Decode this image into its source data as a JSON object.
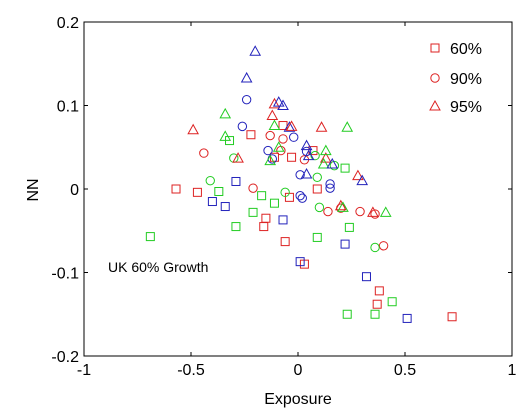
{
  "chart_data": {
    "type": "scatter",
    "title": "",
    "xlabel": "Exposure",
    "ylabel": "NN",
    "xlim": [
      -1,
      1
    ],
    "ylim": [
      -0.2,
      0.2
    ],
    "x_ticks": [
      "-1",
      "-0.5",
      "0",
      "0.5",
      "1"
    ],
    "y_ticks": [
      "-0.2",
      "-0.1",
      "0",
      "0.1",
      "0.2"
    ],
    "x_tick_values": [
      -1,
      -0.5,
      0,
      0.5,
      1
    ],
    "y_tick_values": [
      -0.2,
      -0.1,
      0,
      0.1,
      0.2
    ],
    "grid": false,
    "legend_position": "top-right",
    "legend": [
      {
        "label": "60%",
        "marker": "square"
      },
      {
        "label": "90%",
        "marker": "circle"
      },
      {
        "label": "95%",
        "marker": "triangle"
      }
    ],
    "annotations": [
      {
        "text": "UK 60% Growth",
        "x": -0.72,
        "y": -0.088
      }
    ],
    "colors": {
      "red": "#dd2222",
      "green": "#22cc22",
      "blue": "#2222bb"
    },
    "series": [
      {
        "marker": "square",
        "points": [
          {
            "x": -0.22,
            "y": 0.065,
            "c": "red"
          },
          {
            "x": -0.07,
            "y": 0.076,
            "c": "red"
          },
          {
            "x": -0.11,
            "y": 0.038,
            "c": "red"
          },
          {
            "x": -0.03,
            "y": 0.038,
            "c": "red"
          },
          {
            "x": 0.07,
            "y": 0.046,
            "c": "red"
          },
          {
            "x": 0.09,
            "y": 0.0,
            "c": "red"
          },
          {
            "x": -0.57,
            "y": 0.0,
            "c": "red"
          },
          {
            "x": -0.47,
            "y": -0.004,
            "c": "red"
          },
          {
            "x": -0.04,
            "y": -0.01,
            "c": "red"
          },
          {
            "x": -0.15,
            "y": -0.035,
            "c": "red"
          },
          {
            "x": -0.16,
            "y": -0.045,
            "c": "red"
          },
          {
            "x": -0.06,
            "y": -0.063,
            "c": "red"
          },
          {
            "x": 0.03,
            "y": -0.09,
            "c": "red"
          },
          {
            "x": 0.38,
            "y": -0.122,
            "c": "red"
          },
          {
            "x": 0.37,
            "y": -0.138,
            "c": "red"
          },
          {
            "x": 0.72,
            "y": -0.153,
            "c": "red"
          },
          {
            "x": -0.32,
            "y": 0.058,
            "c": "green"
          },
          {
            "x": 0.22,
            "y": 0.025,
            "c": "green"
          },
          {
            "x": -0.37,
            "y": -0.003,
            "c": "green"
          },
          {
            "x": -0.17,
            "y": -0.008,
            "c": "green"
          },
          {
            "x": -0.11,
            "y": -0.017,
            "c": "green"
          },
          {
            "x": -0.21,
            "y": -0.028,
            "c": "green"
          },
          {
            "x": -0.29,
            "y": -0.045,
            "c": "green"
          },
          {
            "x": 0.09,
            "y": -0.058,
            "c": "green"
          },
          {
            "x": -0.69,
            "y": -0.057,
            "c": "green"
          },
          {
            "x": 0.24,
            "y": -0.046,
            "c": "green"
          },
          {
            "x": 0.23,
            "y": -0.15,
            "c": "green"
          },
          {
            "x": 0.36,
            "y": -0.15,
            "c": "green"
          },
          {
            "x": 0.44,
            "y": -0.135,
            "c": "green"
          },
          {
            "x": -0.29,
            "y": 0.009,
            "c": "blue"
          },
          {
            "x": -0.4,
            "y": -0.015,
            "c": "blue"
          },
          {
            "x": -0.34,
            "y": -0.021,
            "c": "blue"
          },
          {
            "x": -0.07,
            "y": -0.037,
            "c": "blue"
          },
          {
            "x": 0.01,
            "y": -0.087,
            "c": "blue"
          },
          {
            "x": 0.22,
            "y": -0.066,
            "c": "blue"
          },
          {
            "x": 0.32,
            "y": -0.105,
            "c": "blue"
          },
          {
            "x": 0.51,
            "y": -0.155,
            "c": "blue"
          }
        ]
      },
      {
        "marker": "circle",
        "points": [
          {
            "x": -0.24,
            "y": 0.107,
            "c": "blue"
          },
          {
            "x": -0.26,
            "y": 0.075,
            "c": "blue"
          },
          {
            "x": -0.02,
            "y": 0.062,
            "c": "blue"
          },
          {
            "x": -0.14,
            "y": 0.046,
            "c": "blue"
          },
          {
            "x": 0.04,
            "y": 0.045,
            "c": "blue"
          },
          {
            "x": -0.07,
            "y": 0.06,
            "c": "red"
          },
          {
            "x": -0.13,
            "y": 0.064,
            "c": "red"
          },
          {
            "x": -0.08,
            "y": 0.046,
            "c": "red"
          },
          {
            "x": -0.44,
            "y": 0.043,
            "c": "red"
          },
          {
            "x": 0.03,
            "y": 0.035,
            "c": "red"
          },
          {
            "x": -0.3,
            "y": 0.037,
            "c": "green"
          },
          {
            "x": 0.08,
            "y": 0.04,
            "c": "green"
          },
          {
            "x": -0.12,
            "y": 0.036,
            "c": "blue"
          },
          {
            "x": 0.01,
            "y": 0.017,
            "c": "blue"
          },
          {
            "x": 0.17,
            "y": 0.028,
            "c": "green"
          },
          {
            "x": -0.41,
            "y": 0.01,
            "c": "green"
          },
          {
            "x": 0.09,
            "y": 0.014,
            "c": "green"
          },
          {
            "x": 0.15,
            "y": 0.006,
            "c": "blue"
          },
          {
            "x": 0.15,
            "y": 0.001,
            "c": "blue"
          },
          {
            "x": -0.21,
            "y": 0.001,
            "c": "red"
          },
          {
            "x": -0.06,
            "y": -0.004,
            "c": "green"
          },
          {
            "x": 0.01,
            "y": -0.008,
            "c": "blue"
          },
          {
            "x": 0.02,
            "y": -0.011,
            "c": "blue"
          },
          {
            "x": 0.1,
            "y": -0.022,
            "c": "green"
          },
          {
            "x": 0.14,
            "y": -0.027,
            "c": "red"
          },
          {
            "x": 0.2,
            "y": -0.023,
            "c": "red"
          },
          {
            "x": 0.29,
            "y": -0.027,
            "c": "red"
          },
          {
            "x": 0.36,
            "y": -0.03,
            "c": "red"
          },
          {
            "x": 0.4,
            "y": -0.068,
            "c": "red"
          },
          {
            "x": 0.36,
            "y": -0.07,
            "c": "green"
          }
        ]
      },
      {
        "marker": "triangle",
        "points": [
          {
            "x": -0.2,
            "y": 0.165,
            "c": "blue"
          },
          {
            "x": -0.24,
            "y": 0.133,
            "c": "blue"
          },
          {
            "x": -0.11,
            "y": 0.102,
            "c": "red"
          },
          {
            "x": -0.09,
            "y": 0.104,
            "c": "blue"
          },
          {
            "x": -0.07,
            "y": 0.1,
            "c": "blue"
          },
          {
            "x": -0.49,
            "y": 0.071,
            "c": "red"
          },
          {
            "x": -0.34,
            "y": 0.09,
            "c": "green"
          },
          {
            "x": -0.12,
            "y": 0.088,
            "c": "red"
          },
          {
            "x": -0.04,
            "y": 0.074,
            "c": "blue"
          },
          {
            "x": -0.03,
            "y": 0.075,
            "c": "red"
          },
          {
            "x": 0.11,
            "y": 0.074,
            "c": "red"
          },
          {
            "x": 0.23,
            "y": 0.074,
            "c": "green"
          },
          {
            "x": -0.11,
            "y": 0.076,
            "c": "green"
          },
          {
            "x": 0.04,
            "y": 0.052,
            "c": "blue"
          },
          {
            "x": -0.34,
            "y": 0.063,
            "c": "green"
          },
          {
            "x": -0.09,
            "y": 0.05,
            "c": "green"
          },
          {
            "x": 0.13,
            "y": 0.037,
            "c": "red"
          },
          {
            "x": 0.13,
            "y": 0.046,
            "c": "green"
          },
          {
            "x": -0.28,
            "y": 0.037,
            "c": "red"
          },
          {
            "x": -0.13,
            "y": 0.034,
            "c": "green"
          },
          {
            "x": 0.05,
            "y": 0.04,
            "c": "blue"
          },
          {
            "x": 0.12,
            "y": 0.03,
            "c": "green"
          },
          {
            "x": 0.16,
            "y": 0.03,
            "c": "blue"
          },
          {
            "x": 0.04,
            "y": 0.018,
            "c": "blue"
          },
          {
            "x": 0.28,
            "y": 0.016,
            "c": "red"
          },
          {
            "x": 0.3,
            "y": 0.01,
            "c": "blue"
          },
          {
            "x": 0.2,
            "y": -0.02,
            "c": "red"
          },
          {
            "x": 0.21,
            "y": -0.022,
            "c": "green"
          },
          {
            "x": 0.35,
            "y": -0.028,
            "c": "red"
          },
          {
            "x": 0.41,
            "y": -0.028,
            "c": "green"
          }
        ]
      }
    ]
  }
}
